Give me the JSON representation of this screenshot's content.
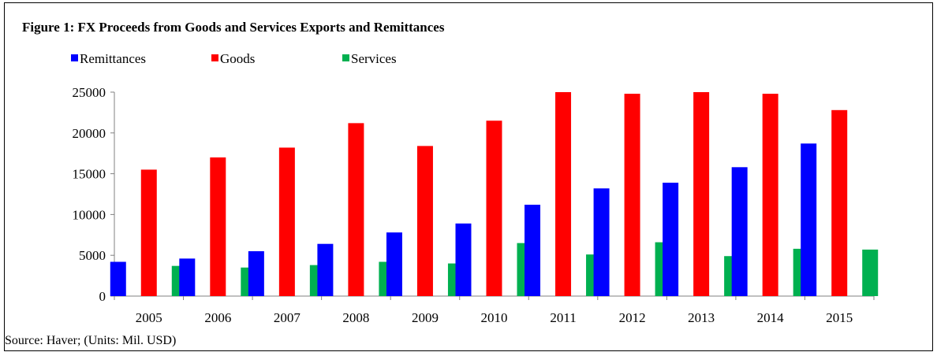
{
  "title": "Figure 1: FX Proceeds from Goods and Services Exports and Remittances",
  "source": "Source: Haver; (Units: Mil. USD)",
  "chart_data": {
    "type": "bar",
    "categories": [
      "2005",
      "2006",
      "2007",
      "2008",
      "2009",
      "2010",
      "2011",
      "2012",
      "2013",
      "2014",
      "2015"
    ],
    "series": [
      {
        "name": "Remittances",
        "color": "#0000ff",
        "values": [
          4200,
          4600,
          5500,
          6400,
          7800,
          8900,
          11200,
          13200,
          13900,
          15800,
          18700
        ]
      },
      {
        "name": "Goods",
        "color": "#ff0000",
        "values": [
          15500,
          17000,
          18200,
          21200,
          18400,
          21500,
          25000,
          24800,
          25000,
          24800,
          22800
        ]
      },
      {
        "name": "Services",
        "color": "#00b050",
        "values": [
          3700,
          3500,
          3800,
          4200,
          4000,
          6500,
          5100,
          6600,
          4900,
          5800,
          5700
        ]
      }
    ],
    "yticks": [
      "0",
      "5000",
      "10000",
      "15000",
      "20000",
      "25000"
    ],
    "ylim": [
      0,
      25000
    ],
    "grid": false,
    "legend": "top-left"
  }
}
